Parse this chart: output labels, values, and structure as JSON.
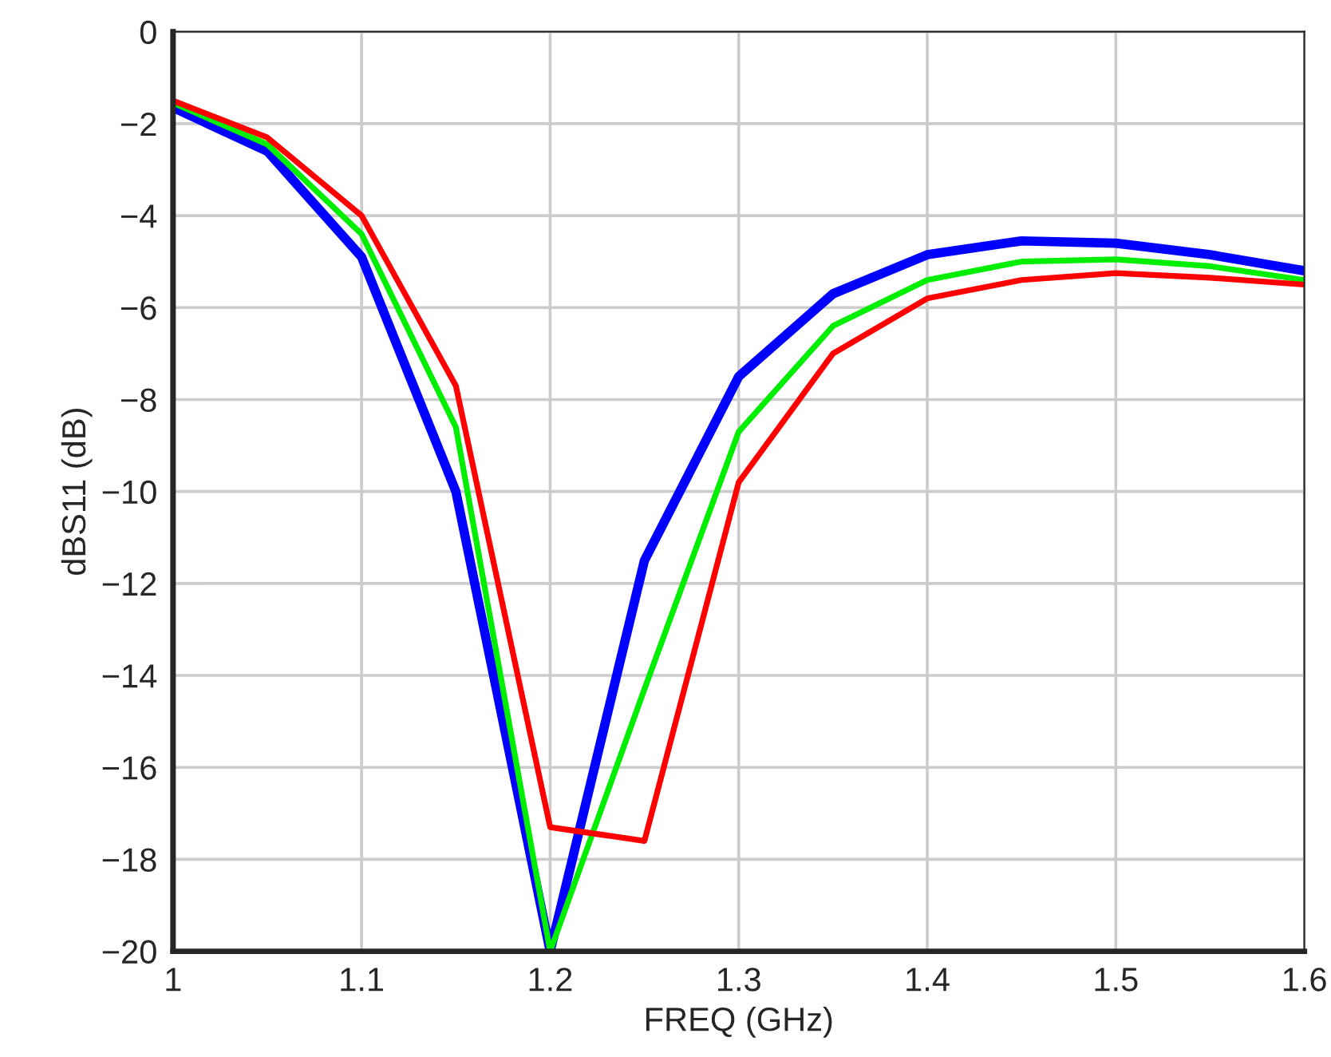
{
  "chart_data": {
    "type": "line",
    "xlabel": "FREQ (GHz)",
    "ylabel": "dBS11 (dB)",
    "x": [
      1.0,
      1.05,
      1.1,
      1.15,
      1.2,
      1.25,
      1.3,
      1.35,
      1.4,
      1.45,
      1.5,
      1.55,
      1.6
    ],
    "series": [
      {
        "color": "#0000ff",
        "values": [
          -1.65,
          -2.6,
          -4.9,
          -10.0,
          -20.0,
          -11.5,
          -7.5,
          -5.7,
          -4.85,
          -4.55,
          -4.6,
          -4.85,
          -5.2
        ]
      },
      {
        "color": "#00ee00",
        "values": [
          -1.55,
          -2.45,
          -4.4,
          -8.6,
          -20.0,
          -14.3,
          -8.7,
          -6.4,
          -5.4,
          -5.0,
          -4.95,
          -5.1,
          -5.4
        ]
      },
      {
        "color": "#ff0000",
        "values": [
          -1.5,
          -2.3,
          -4.0,
          -7.7,
          -17.3,
          -17.6,
          -9.8,
          -7.0,
          -5.8,
          -5.4,
          -5.25,
          -5.35,
          -5.5
        ]
      }
    ],
    "xlim": [
      1.0,
      1.6
    ],
    "xticks": [
      1,
      1.1,
      1.2,
      1.3,
      1.4,
      1.5,
      1.6
    ],
    "ylim": [
      -20,
      0
    ],
    "yticks": [
      -20,
      -18,
      -16,
      -14,
      -12,
      -10,
      -8,
      -6,
      -4,
      -2,
      0
    ],
    "grid": true,
    "legend": false,
    "marker": "none",
    "line_style": "solid"
  }
}
